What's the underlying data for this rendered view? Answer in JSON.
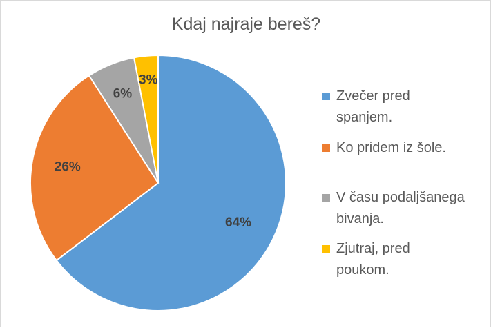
{
  "chart_data": {
    "type": "pie",
    "title": "Kdaj najraje bereš?",
    "categories": [
      "Zvečer pred spanjem.",
      "Ko pridem iz šole.",
      "V času podaljšanega bivanja.",
      "Zjutraj, pred poukom."
    ],
    "values": [
      64,
      26,
      6,
      3
    ],
    "data_labels": [
      "64%",
      "26%",
      "6%",
      "3%"
    ],
    "colors": [
      "#5B9BD5",
      "#ED7D31",
      "#A5A5A5",
      "#FFC000"
    ],
    "legend_position": "right"
  },
  "legend": {
    "items": [
      {
        "line1": "Zvečer pred",
        "line2": "spanjem."
      },
      {
        "line1": "Ko pridem iz šole.",
        "line2": ""
      },
      {
        "line1": "V času podaljšanega",
        "line2": "bivanja."
      },
      {
        "line1": "Zjutraj, pred",
        "line2": "poukom."
      }
    ]
  }
}
